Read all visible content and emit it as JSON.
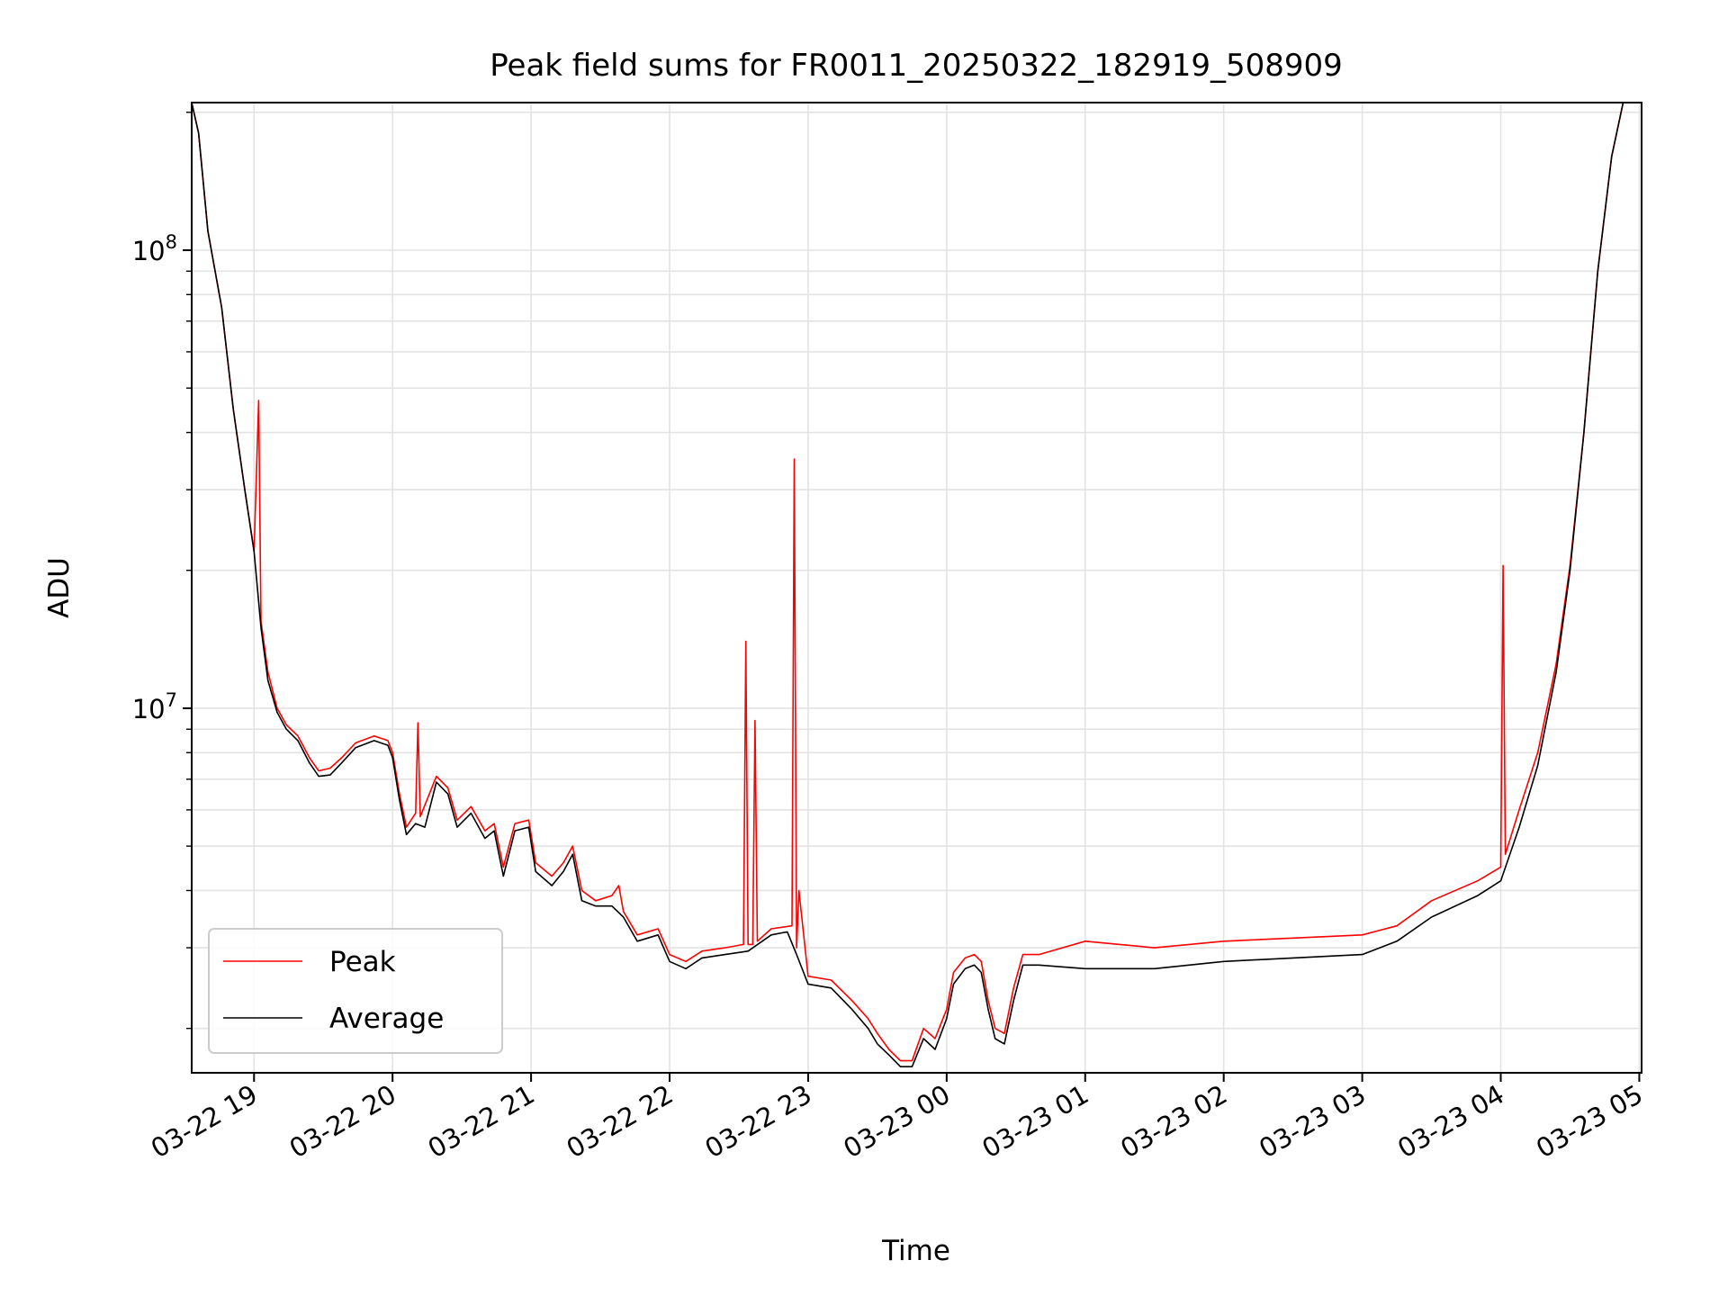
{
  "chart_data": {
    "type": "line",
    "title": "Peak field sums for FR0011_20250322_182919_508909",
    "xlabel": "Time",
    "ylabel": "ADU",
    "yscale": "log",
    "xlim": [
      "2025-03-22 18:33",
      "2025-03-23 05:01"
    ],
    "ylim": [
      1600000,
      210000000
    ],
    "grid": true,
    "legend_position": "lower left",
    "x_ticks": [
      "03-22 19",
      "03-22 20",
      "03-22 21",
      "03-22 22",
      "03-22 23",
      "03-23 00",
      "03-23 01",
      "03-23 02",
      "03-23 03",
      "03-23 04",
      "03-23 05"
    ],
    "y_ticks": [
      {
        "value": 10000000,
        "label_base": "10",
        "label_exp": "7"
      },
      {
        "value": 100000000,
        "label_base": "10",
        "label_exp": "8"
      }
    ],
    "series": [
      {
        "name": "Average",
        "color": "#000000",
        "points": [
          [
            "2025-03-22 18:33",
            210000000
          ],
          [
            "2025-03-22 18:36",
            180000000
          ],
          [
            "2025-03-22 18:40",
            110000000
          ],
          [
            "2025-03-22 18:46",
            75000000
          ],
          [
            "2025-03-22 18:51",
            45000000
          ],
          [
            "2025-03-22 18:56",
            30000000
          ],
          [
            "2025-03-22 19:00",
            22000000
          ],
          [
            "2025-03-22 19:03",
            15000000
          ],
          [
            "2025-03-22 19:06",
            11500000
          ],
          [
            "2025-03-22 19:10",
            9800000
          ],
          [
            "2025-03-22 19:14",
            9000000
          ],
          [
            "2025-03-22 19:19",
            8500000
          ],
          [
            "2025-03-22 19:24",
            7600000
          ],
          [
            "2025-03-22 19:28",
            7100000
          ],
          [
            "2025-03-22 19:33",
            7150000
          ],
          [
            "2025-03-22 19:38",
            7600000
          ],
          [
            "2025-03-22 19:44",
            8200000
          ],
          [
            "2025-03-22 19:52",
            8500000
          ],
          [
            "2025-03-22 19:58",
            8300000
          ],
          [
            "2025-03-22 20:00",
            7800000
          ],
          [
            "2025-03-22 20:03",
            6300000
          ],
          [
            "2025-03-22 20:06",
            5300000
          ],
          [
            "2025-03-22 20:10",
            5600000
          ],
          [
            "2025-03-22 20:14",
            5500000
          ],
          [
            "2025-03-22 20:19",
            6900000
          ],
          [
            "2025-03-22 20:24",
            6500000
          ],
          [
            "2025-03-22 20:28",
            5500000
          ],
          [
            "2025-03-22 20:34",
            5900000
          ],
          [
            "2025-03-22 20:40",
            5200000
          ],
          [
            "2025-03-22 20:44",
            5400000
          ],
          [
            "2025-03-22 20:48",
            4300000
          ],
          [
            "2025-03-22 20:53",
            5400000
          ],
          [
            "2025-03-22 20:59",
            5500000
          ],
          [
            "2025-03-22 21:02",
            4400000
          ],
          [
            "2025-03-22 21:09",
            4100000
          ],
          [
            "2025-03-22 21:14",
            4400000
          ],
          [
            "2025-03-22 21:18",
            4800000
          ],
          [
            "2025-03-22 21:22",
            3800000
          ],
          [
            "2025-03-22 21:28",
            3700000
          ],
          [
            "2025-03-22 21:35",
            3700000
          ],
          [
            "2025-03-22 21:40",
            3500000
          ],
          [
            "2025-03-22 21:46",
            3100000
          ],
          [
            "2025-03-22 21:55",
            3200000
          ],
          [
            "2025-03-22 22:00",
            2800000
          ],
          [
            "2025-03-22 22:07",
            2700000
          ],
          [
            "2025-03-22 22:14",
            2850000
          ],
          [
            "2025-03-22 22:24",
            2900000
          ],
          [
            "2025-03-22 22:34",
            2950000
          ],
          [
            "2025-03-22 22:44",
            3200000
          ],
          [
            "2025-03-22 22:51",
            3250000
          ],
          [
            "2025-03-22 22:55",
            2900000
          ],
          [
            "2025-03-22 23:00",
            2500000
          ],
          [
            "2025-03-22 23:10",
            2450000
          ],
          [
            "2025-03-22 23:19",
            2200000
          ],
          [
            "2025-03-22 23:26",
            2000000
          ],
          [
            "2025-03-22 23:30",
            1850000
          ],
          [
            "2025-03-22 23:35",
            1750000
          ],
          [
            "2025-03-22 23:40",
            1650000
          ],
          [
            "2025-03-22 23:45",
            1650000
          ],
          [
            "2025-03-22 23:50",
            1900000
          ],
          [
            "2025-03-22 23:55",
            1800000
          ],
          [
            "2025-03-23 00:00",
            2100000
          ],
          [
            "2025-03-23 00:03",
            2500000
          ],
          [
            "2025-03-23 00:08",
            2700000
          ],
          [
            "2025-03-23 00:12",
            2750000
          ],
          [
            "2025-03-23 00:15",
            2650000
          ],
          [
            "2025-03-23 00:18",
            2200000
          ],
          [
            "2025-03-23 00:21",
            1900000
          ],
          [
            "2025-03-23 00:25",
            1850000
          ],
          [
            "2025-03-23 00:29",
            2300000
          ],
          [
            "2025-03-23 00:33",
            2750000
          ],
          [
            "2025-03-23 00:40",
            2750000
          ],
          [
            "2025-03-23 01:00",
            2700000
          ],
          [
            "2025-03-23 01:30",
            2700000
          ],
          [
            "2025-03-23 02:00",
            2800000
          ],
          [
            "2025-03-23 02:30",
            2850000
          ],
          [
            "2025-03-23 03:00",
            2900000
          ],
          [
            "2025-03-23 03:15",
            3100000
          ],
          [
            "2025-03-23 03:30",
            3500000
          ],
          [
            "2025-03-23 03:50",
            3900000
          ],
          [
            "2025-03-23 04:00",
            4200000
          ],
          [
            "2025-03-23 04:08",
            5500000
          ],
          [
            "2025-03-23 04:16",
            7500000
          ],
          [
            "2025-03-23 04:24",
            12000000
          ],
          [
            "2025-03-23 04:30",
            20000000
          ],
          [
            "2025-03-23 04:36",
            40000000
          ],
          [
            "2025-03-23 04:42",
            90000000
          ],
          [
            "2025-03-23 04:48",
            160000000
          ],
          [
            "2025-03-23 04:53",
            210000000
          ],
          [
            "2025-03-23 05:01",
            210000000
          ]
        ]
      },
      {
        "name": "Peak",
        "color": "#ff0000",
        "points": [
          [
            "2025-03-22 18:33",
            210000000
          ],
          [
            "2025-03-22 18:36",
            180000000
          ],
          [
            "2025-03-22 18:40",
            110000000
          ],
          [
            "2025-03-22 18:46",
            75000000
          ],
          [
            "2025-03-22 18:51",
            45000000
          ],
          [
            "2025-03-22 18:56",
            30000000
          ],
          [
            "2025-03-22 19:00",
            22000000
          ],
          [
            "2025-03-22 19:02",
            47000000
          ],
          [
            "2025-03-22 19:03",
            15500000
          ],
          [
            "2025-03-22 19:06",
            12000000
          ],
          [
            "2025-03-22 19:10",
            10000000
          ],
          [
            "2025-03-22 19:14",
            9200000
          ],
          [
            "2025-03-22 19:19",
            8700000
          ],
          [
            "2025-03-22 19:24",
            7800000
          ],
          [
            "2025-03-22 19:28",
            7300000
          ],
          [
            "2025-03-22 19:33",
            7400000
          ],
          [
            "2025-03-22 19:38",
            7800000
          ],
          [
            "2025-03-22 19:44",
            8400000
          ],
          [
            "2025-03-22 19:52",
            8700000
          ],
          [
            "2025-03-22 19:58",
            8500000
          ],
          [
            "2025-03-22 20:00",
            8000000
          ],
          [
            "2025-03-22 20:03",
            6500000
          ],
          [
            "2025-03-22 20:06",
            5500000
          ],
          [
            "2025-03-22 20:10",
            5900000
          ],
          [
            "2025-03-22 20:11",
            9300000
          ],
          [
            "2025-03-22 20:12",
            5800000
          ],
          [
            "2025-03-22 20:19",
            7100000
          ],
          [
            "2025-03-22 20:24",
            6700000
          ],
          [
            "2025-03-22 20:28",
            5700000
          ],
          [
            "2025-03-22 20:34",
            6100000
          ],
          [
            "2025-03-22 20:40",
            5400000
          ],
          [
            "2025-03-22 20:44",
            5600000
          ],
          [
            "2025-03-22 20:48",
            4500000
          ],
          [
            "2025-03-22 20:53",
            5600000
          ],
          [
            "2025-03-22 20:59",
            5700000
          ],
          [
            "2025-03-22 21:02",
            4600000
          ],
          [
            "2025-03-22 21:09",
            4300000
          ],
          [
            "2025-03-22 21:14",
            4600000
          ],
          [
            "2025-03-22 21:18",
            5000000
          ],
          [
            "2025-03-22 21:22",
            4000000
          ],
          [
            "2025-03-22 21:28",
            3800000
          ],
          [
            "2025-03-22 21:35",
            3900000
          ],
          [
            "2025-03-22 21:38",
            4100000
          ],
          [
            "2025-03-22 21:40",
            3600000
          ],
          [
            "2025-03-22 21:46",
            3200000
          ],
          [
            "2025-03-22 21:55",
            3300000
          ],
          [
            "2025-03-22 22:00",
            2900000
          ],
          [
            "2025-03-22 22:07",
            2800000
          ],
          [
            "2025-03-22 22:14",
            2950000
          ],
          [
            "2025-03-22 22:24",
            3000000
          ],
          [
            "2025-03-22 22:32",
            3050000
          ],
          [
            "2025-03-22 22:33",
            14000000
          ],
          [
            "2025-03-22 22:34",
            3050000
          ],
          [
            "2025-03-22 22:36",
            3050000
          ],
          [
            "2025-03-22 22:37",
            9400000
          ],
          [
            "2025-03-22 22:38",
            3100000
          ],
          [
            "2025-03-22 22:44",
            3300000
          ],
          [
            "2025-03-22 22:53",
            3350000
          ],
          [
            "2025-03-22 22:54",
            35000000
          ],
          [
            "2025-03-22 22:55",
            3000000
          ],
          [
            "2025-03-22 22:56",
            4000000
          ],
          [
            "2025-03-22 23:00",
            2600000
          ],
          [
            "2025-03-22 23:10",
            2550000
          ],
          [
            "2025-03-22 23:19",
            2300000
          ],
          [
            "2025-03-22 23:26",
            2100000
          ],
          [
            "2025-03-22 23:30",
            1950000
          ],
          [
            "2025-03-22 23:35",
            1800000
          ],
          [
            "2025-03-22 23:40",
            1700000
          ],
          [
            "2025-03-22 23:45",
            1700000
          ],
          [
            "2025-03-22 23:50",
            2000000
          ],
          [
            "2025-03-22 23:55",
            1900000
          ],
          [
            "2025-03-23 00:00",
            2200000
          ],
          [
            "2025-03-23 00:03",
            2650000
          ],
          [
            "2025-03-23 00:08",
            2850000
          ],
          [
            "2025-03-23 00:12",
            2900000
          ],
          [
            "2025-03-23 00:15",
            2800000
          ],
          [
            "2025-03-23 00:18",
            2300000
          ],
          [
            "2025-03-23 00:21",
            2000000
          ],
          [
            "2025-03-23 00:25",
            1950000
          ],
          [
            "2025-03-23 00:29",
            2450000
          ],
          [
            "2025-03-23 00:33",
            2900000
          ],
          [
            "2025-03-23 00:40",
            2900000
          ],
          [
            "2025-03-23 01:00",
            3100000
          ],
          [
            "2025-03-23 01:30",
            3000000
          ],
          [
            "2025-03-23 02:00",
            3100000
          ],
          [
            "2025-03-23 02:30",
            3150000
          ],
          [
            "2025-03-23 03:00",
            3200000
          ],
          [
            "2025-03-23 03:15",
            3350000
          ],
          [
            "2025-03-23 03:30",
            3800000
          ],
          [
            "2025-03-23 03:50",
            4200000
          ],
          [
            "2025-03-23 04:00",
            4500000
          ],
          [
            "2025-03-23 04:01",
            20500000
          ],
          [
            "2025-03-23 04:02",
            4800000
          ],
          [
            "2025-03-23 04:08",
            6000000
          ],
          [
            "2025-03-23 04:16",
            8000000
          ],
          [
            "2025-03-23 04:24",
            12500000
          ],
          [
            "2025-03-23 04:30",
            20500000
          ],
          [
            "2025-03-23 04:36",
            40000000
          ],
          [
            "2025-03-23 04:42",
            90000000
          ],
          [
            "2025-03-23 04:48",
            160000000
          ],
          [
            "2025-03-23 04:53",
            210000000
          ],
          [
            "2025-03-23 05:01",
            210000000
          ]
        ]
      }
    ]
  }
}
